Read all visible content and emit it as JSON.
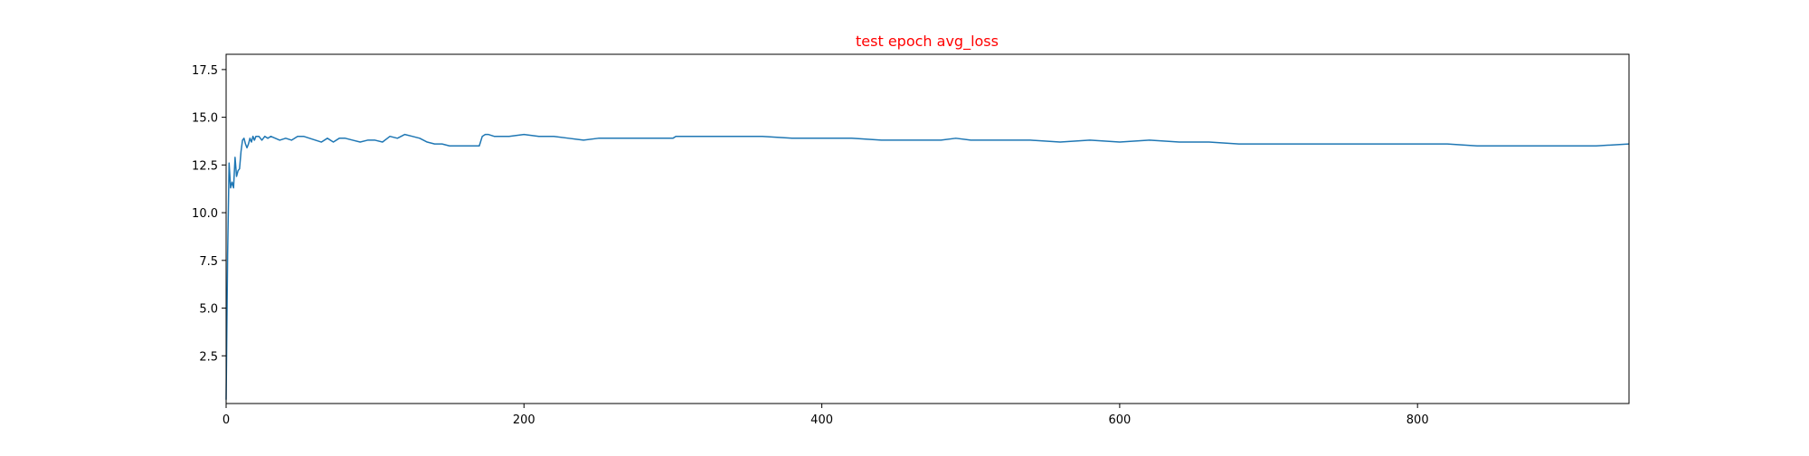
{
  "chart_data": {
    "type": "line",
    "title": "test epoch avg_loss",
    "title_color": "#ff0000",
    "xlabel": "",
    "ylabel": "",
    "xlim": [
      0,
      942
    ],
    "ylim": [
      0,
      18.3
    ],
    "xticks": [
      0,
      200,
      400,
      600,
      800
    ],
    "xtick_labels": [
      "0",
      "200",
      "400",
      "600",
      "800"
    ],
    "yticks": [
      2.5,
      5.0,
      7.5,
      10.0,
      12.5,
      15.0,
      17.5
    ],
    "ytick_labels": [
      "2.5",
      "5.0",
      "7.5",
      "10.0",
      "12.5",
      "15.0",
      "17.5"
    ],
    "grid": false,
    "legend": "none",
    "series": [
      {
        "color": "#1f77b4",
        "x": [
          0,
          1,
          2,
          3,
          4,
          5,
          6,
          7,
          8,
          9,
          10,
          11,
          12,
          13,
          14,
          15,
          16,
          17,
          18,
          19,
          20,
          22,
          24,
          26,
          28,
          30,
          33,
          36,
          40,
          44,
          48,
          52,
          56,
          60,
          64,
          68,
          72,
          76,
          80,
          85,
          90,
          95,
          100,
          105,
          110,
          115,
          120,
          125,
          130,
          135,
          140,
          145,
          150,
          155,
          160,
          165,
          170,
          172,
          174,
          176,
          180,
          190,
          200,
          210,
          220,
          230,
          240,
          250,
          260,
          270,
          280,
          290,
          300,
          302,
          304,
          310,
          320,
          340,
          360,
          380,
          400,
          420,
          440,
          460,
          480,
          490,
          500,
          520,
          540,
          560,
          580,
          600,
          620,
          640,
          660,
          680,
          700,
          720,
          740,
          760,
          780,
          800,
          820,
          840,
          860,
          880,
          900,
          920,
          942
        ],
        "y": [
          0.2,
          7.8,
          12.6,
          11.3,
          11.6,
          11.3,
          12.9,
          11.9,
          12.2,
          12.3,
          13.2,
          13.8,
          13.9,
          13.6,
          13.4,
          13.6,
          13.9,
          13.7,
          14.0,
          13.8,
          14.0,
          14.0,
          13.8,
          14.0,
          13.9,
          14.0,
          13.9,
          13.8,
          13.9,
          13.8,
          14.0,
          14.0,
          13.9,
          13.8,
          13.7,
          13.9,
          13.7,
          13.9,
          13.9,
          13.8,
          13.7,
          13.8,
          13.8,
          13.7,
          14.0,
          13.9,
          14.1,
          14.0,
          13.9,
          13.7,
          13.6,
          13.6,
          13.5,
          13.5,
          13.5,
          13.5,
          13.5,
          14.0,
          14.1,
          14.1,
          14.0,
          14.0,
          14.1,
          14.0,
          14.0,
          13.9,
          13.8,
          13.9,
          13.9,
          13.9,
          13.9,
          13.9,
          13.9,
          14.0,
          14.0,
          14.0,
          14.0,
          14.0,
          14.0,
          13.9,
          13.9,
          13.9,
          13.8,
          13.8,
          13.8,
          13.9,
          13.8,
          13.8,
          13.8,
          13.7,
          13.8,
          13.7,
          13.8,
          13.7,
          13.7,
          13.6,
          13.6,
          13.6,
          13.6,
          13.6,
          13.6,
          13.6,
          13.6,
          13.5,
          13.5,
          13.5,
          13.5,
          13.5,
          13.6
        ]
      }
    ]
  }
}
